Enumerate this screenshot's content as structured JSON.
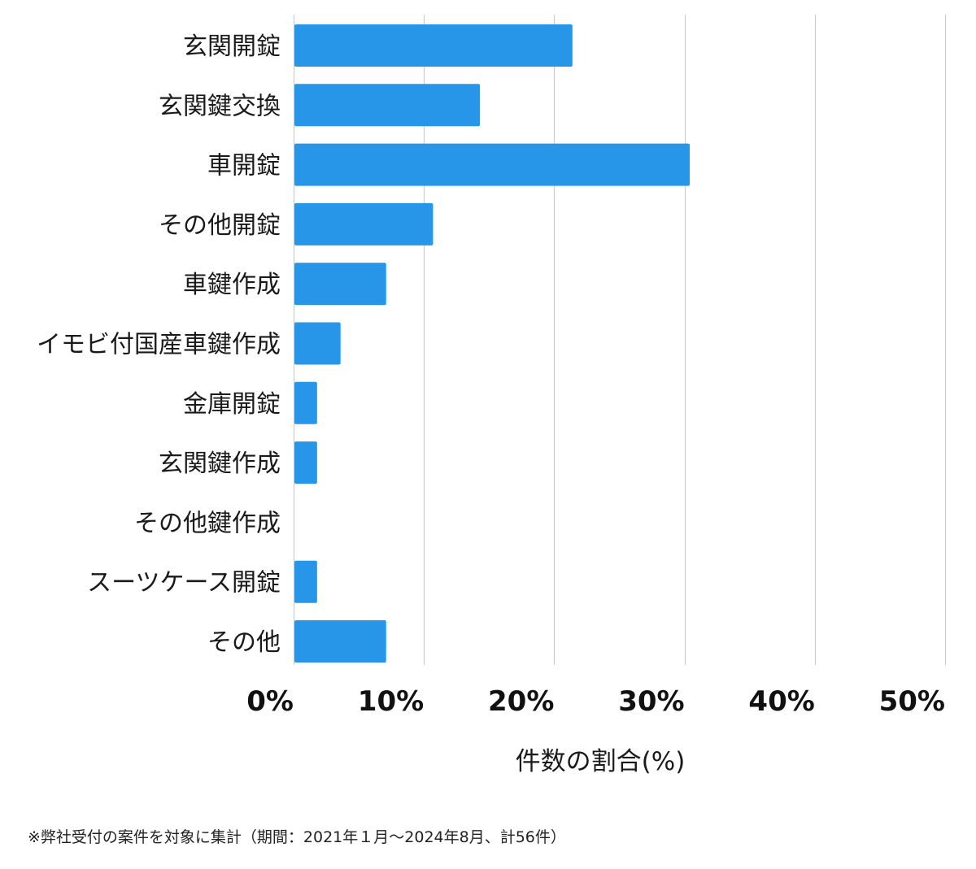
{
  "chart_data": {
    "type": "bar",
    "orientation": "horizontal",
    "categories": [
      "玄関開錠",
      "玄関鍵交換",
      "車開錠",
      "その他開錠",
      "車鍵作成",
      "イモビ付国産車鍵作成",
      "金庫開錠",
      "玄関鍵作成",
      "その他鍵作成",
      "スーツケース開錠",
      "その他"
    ],
    "values": [
      21.4,
      14.3,
      30.4,
      10.7,
      7.1,
      3.6,
      1.8,
      1.8,
      0,
      1.8,
      7.1
    ],
    "xlim": [
      0,
      50
    ],
    "xticks": [
      0,
      10,
      20,
      30,
      40,
      50
    ],
    "tick_labels": [
      "0%",
      "10%",
      "20%",
      "30%",
      "40%",
      "50%"
    ],
    "xlabel": "件数の割合(%)",
    "ylabel": "",
    "title": "",
    "grid": "vertical",
    "bar_color": "#2896e8",
    "grid_color": "#cccccc"
  },
  "footnote": "※弊社受付の案件を対象に集計（期間：2021年１月～2024年8月、計56件）"
}
